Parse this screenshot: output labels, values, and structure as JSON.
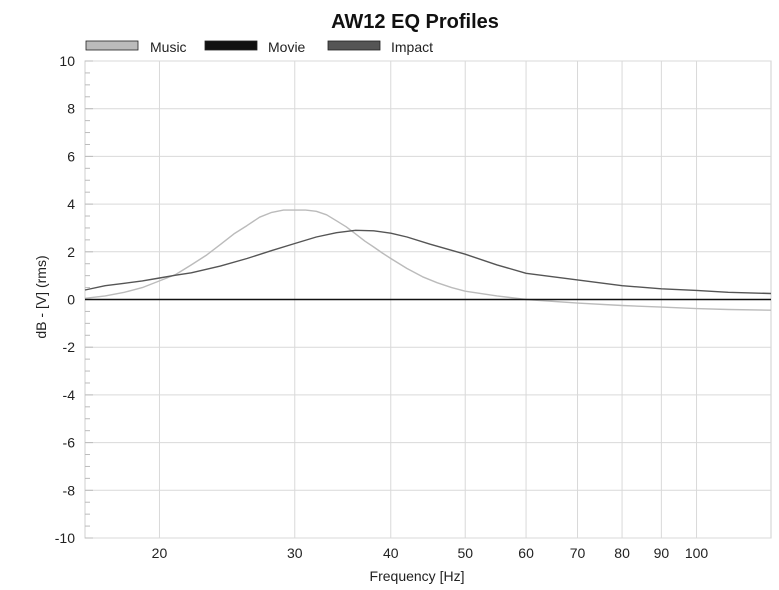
{
  "chart_data": {
    "type": "line",
    "title": "AW12 EQ Profiles",
    "xlabel": "Frequency [Hz]",
    "ylabel": "dB - [V] (rms)",
    "x_scale": "log",
    "xlim": [
      16,
      125
    ],
    "ylim": [
      -10,
      10
    ],
    "x_ticks": [
      20,
      30,
      40,
      50,
      60,
      70,
      80,
      90,
      100
    ],
    "y_ticks": [
      -10,
      -8,
      -6,
      -4,
      -2,
      0,
      2,
      4,
      6,
      8,
      10
    ],
    "grid": true,
    "legend_position": "top-left",
    "series": [
      {
        "name": "Music",
        "color": "#bbbbbb",
        "x": [
          16,
          17,
          18,
          19,
          20,
          21,
          22,
          23,
          24,
          25,
          26,
          27,
          28,
          29,
          30,
          31,
          32,
          33,
          34,
          35,
          36,
          37,
          38,
          39,
          40,
          42,
          44,
          46,
          48,
          50,
          55,
          60,
          70,
          80,
          90,
          100,
          110,
          125
        ],
        "y": [
          0.05,
          0.15,
          0.3,
          0.5,
          0.78,
          1.05,
          1.45,
          1.85,
          2.3,
          2.75,
          3.1,
          3.45,
          3.65,
          3.75,
          3.75,
          3.75,
          3.7,
          3.55,
          3.3,
          3.05,
          2.75,
          2.45,
          2.2,
          1.95,
          1.72,
          1.3,
          0.95,
          0.7,
          0.5,
          0.35,
          0.15,
          0.0,
          -0.15,
          -0.25,
          -0.32,
          -0.38,
          -0.42,
          -0.45
        ]
      },
      {
        "name": "Movie",
        "color": "#111111",
        "x": [
          16,
          125
        ],
        "y": [
          0,
          0
        ]
      },
      {
        "name": "Impact",
        "color": "#555555",
        "x": [
          16,
          17,
          18,
          19,
          20,
          21,
          22,
          24,
          26,
          28,
          30,
          32,
          34,
          36,
          38,
          40,
          42,
          45,
          50,
          55,
          60,
          70,
          80,
          90,
          100,
          110,
          125
        ],
        "y": [
          0.4,
          0.58,
          0.68,
          0.78,
          0.9,
          1.02,
          1.12,
          1.4,
          1.72,
          2.05,
          2.35,
          2.62,
          2.8,
          2.9,
          2.88,
          2.78,
          2.62,
          2.32,
          1.9,
          1.45,
          1.1,
          0.82,
          0.58,
          0.45,
          0.38,
          0.3,
          0.25
        ]
      }
    ]
  }
}
